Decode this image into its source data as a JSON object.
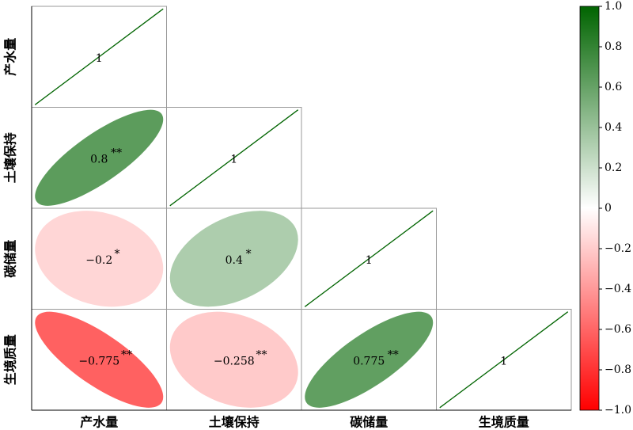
{
  "chart_data": {
    "type": "correlation",
    "variables": [
      "产水量",
      "土壤保持",
      "碳储量",
      "生境质量"
    ],
    "values": [
      [
        1,
        null,
        null,
        null
      ],
      [
        0.8,
        1,
        null,
        null
      ],
      [
        -0.2,
        0.4,
        1,
        null
      ],
      [
        -0.775,
        -0.258,
        0.775,
        1
      ]
    ],
    "value_labels": [
      [
        "1",
        null,
        null,
        null
      ],
      [
        "0.8",
        "1",
        null,
        null
      ],
      [
        "−0.2",
        "0.4",
        "1",
        null
      ],
      [
        "−0.775",
        "−0.258",
        "0.775",
        "1"
      ]
    ],
    "stars": [
      [
        null,
        null,
        null,
        null
      ],
      [
        "**",
        null,
        null,
        null
      ],
      [
        "*",
        "*",
        null,
        null
      ],
      [
        "**",
        "**",
        "**",
        null
      ]
    ],
    "colormap": [
      "#ff0000",
      "#ffffff",
      "#006400"
    ],
    "clim": [
      -1,
      1
    ],
    "cticks": [
      {
        "value": 1,
        "label": "1.0"
      },
      0.8,
      0.6,
      0.4,
      0.2,
      0,
      {
        "value": -0.2,
        "label": "−0.2"
      },
      {
        "value": -0.4,
        "label": "−0.4"
      },
      {
        "value": -0.6,
        "label": "−0.6"
      },
      {
        "value": -0.8,
        "label": "−0.8"
      },
      {
        "value": -1,
        "label": "−1.0"
      }
    ]
  }
}
